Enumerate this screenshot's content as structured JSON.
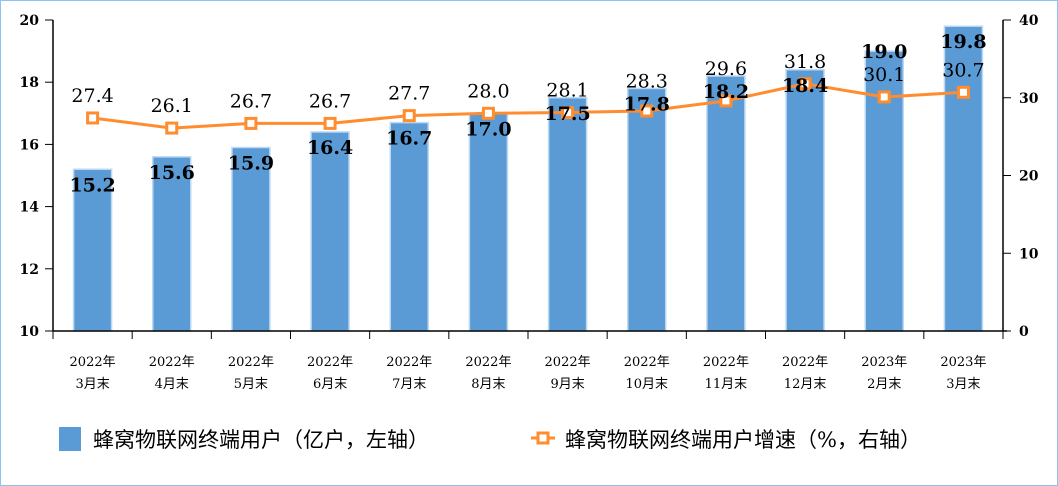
{
  "chart_data": {
    "type": "bar+line",
    "categories": [
      [
        "2022年",
        "3月末"
      ],
      [
        "2022年",
        "4月末"
      ],
      [
        "2022年",
        "5月末"
      ],
      [
        "2022年",
        "6月末"
      ],
      [
        "2022年",
        "7月末"
      ],
      [
        "2022年",
        "8月末"
      ],
      [
        "2022年",
        "9月末"
      ],
      [
        "2022年",
        "10月末"
      ],
      [
        "2022年",
        "11月末"
      ],
      [
        "2022年",
        "12月末"
      ],
      [
        "2023年",
        "2月末"
      ],
      [
        "2023年",
        "3月末"
      ]
    ],
    "series": [
      {
        "name": "蜂窝物联网终端用户（亿户，左轴）",
        "type": "bar",
        "axis": "left",
        "color": "#5b9bd5",
        "values": [
          15.2,
          15.6,
          15.9,
          16.4,
          16.7,
          17.0,
          17.5,
          17.8,
          18.2,
          18.4,
          19.0,
          19.8
        ],
        "labels": [
          "15.2",
          "15.6",
          "15.9",
          "16.4",
          "16.7",
          "17.0",
          "17.5",
          "17.8",
          "18.2",
          "18.4",
          "19.0",
          "19.8"
        ]
      },
      {
        "name": "蜂窝物联网终端用户增速（%，右轴）",
        "type": "line",
        "axis": "right",
        "color": "#ff8c2e",
        "values": [
          27.4,
          26.1,
          26.7,
          26.7,
          27.7,
          28.0,
          28.1,
          28.3,
          29.6,
          31.8,
          30.1,
          30.7
        ],
        "labels": [
          "27.4",
          "26.1",
          "26.7",
          "26.7",
          "27.7",
          "28.0",
          "28.1",
          "28.3",
          "29.6",
          "31.8",
          "30.1",
          "30.7"
        ]
      }
    ],
    "left_axis": {
      "range": [
        10,
        20
      ],
      "ticks": [
        "10",
        "12",
        "14",
        "16",
        "18",
        "20"
      ]
    },
    "right_axis": {
      "range": [
        0,
        40
      ],
      "ticks": [
        "0",
        "10",
        "20",
        "30",
        "40"
      ]
    },
    "grid": false,
    "legend": "bottom"
  }
}
